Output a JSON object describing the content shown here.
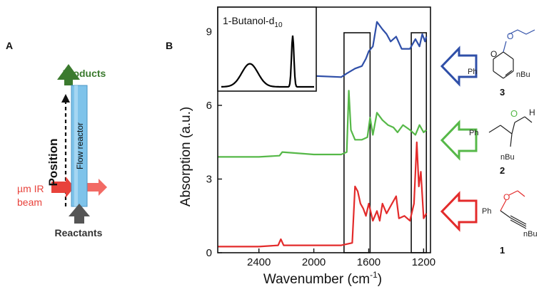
{
  "panel_a": {
    "letter": "A",
    "products": "Products",
    "position": "Position",
    "flow_reactor": "Flow reactor",
    "ir_beam_line1": "µm IR",
    "ir_beam_line2": "beam",
    "reactants": "Reactants",
    "colors": {
      "products": "#3b7a2e",
      "reactor": "#7ec3ea",
      "beam": "#e8423b",
      "reactants": "#555555"
    }
  },
  "panel_b": {
    "letter": "B",
    "ylabel": "Absorption (a.u.)",
    "xlabel_main": "Wavenumber (cm",
    "xlabel_sup": "-1",
    "xlabel_end": ")",
    "inset_label_main": "1-Butanol-d",
    "inset_label_sub": "10"
  },
  "chart_data": {
    "type": "line",
    "xlabel": "Wavenumber (cm-1)",
    "ylabel": "Absorption (a.u.)",
    "xlim": [
      2700,
      1150
    ],
    "ylim": [
      0,
      10
    ],
    "x_ticks": [
      2400,
      2000,
      1600,
      1200
    ],
    "y_ticks": [
      0,
      3,
      6,
      9
    ],
    "grid": false,
    "highlight_windows": [
      [
        1780,
        1590
      ],
      [
        1290,
        1180
      ]
    ],
    "series": [
      {
        "name": "3",
        "color": "#2f4fa8",
        "x": [
          2700,
          2400,
          2250,
          2230,
          2210,
          2000,
          1800,
          1760,
          1700,
          1650,
          1620,
          1600,
          1570,
          1540,
          1500,
          1470,
          1440,
          1400,
          1360,
          1300,
          1260,
          1230,
          1210,
          1190,
          1180
        ],
        "y": [
          7.1,
          7.1,
          7.15,
          7.5,
          7.15,
          7.2,
          7.15,
          7.3,
          7.5,
          7.6,
          7.9,
          8.2,
          8.4,
          9.4,
          9.1,
          8.9,
          8.6,
          8.8,
          8.3,
          8.3,
          8.7,
          8.4,
          8.9,
          8.6,
          8.8
        ]
      },
      {
        "name": "2",
        "color": "#56b848",
        "x": [
          2700,
          2400,
          2250,
          2230,
          2000,
          1800,
          1760,
          1745,
          1730,
          1700,
          1650,
          1610,
          1590,
          1570,
          1540,
          1500,
          1460,
          1420,
          1390,
          1350,
          1300,
          1260,
          1230,
          1200,
          1180
        ],
        "y": [
          3.9,
          3.9,
          3.95,
          4.1,
          4.0,
          4.0,
          4.1,
          6.6,
          5.0,
          4.6,
          4.6,
          4.7,
          5.5,
          4.8,
          5.7,
          5.4,
          5.2,
          5.1,
          4.9,
          5.2,
          5.0,
          4.8,
          5.2,
          4.9,
          5.0
        ]
      },
      {
        "name": "1",
        "color": "#e32b2b",
        "x": [
          2700,
          2400,
          2260,
          2240,
          2220,
          2000,
          1800,
          1720,
          1700,
          1680,
          1660,
          1640,
          1620,
          1600,
          1570,
          1540,
          1520,
          1500,
          1470,
          1440,
          1400,
          1380,
          1340,
          1300,
          1270,
          1250,
          1235,
          1220,
          1200,
          1180
        ],
        "y": [
          0.25,
          0.25,
          0.3,
          0.55,
          0.3,
          0.3,
          0.3,
          0.4,
          2.7,
          2.5,
          2.0,
          1.8,
          1.5,
          2.0,
          1.3,
          1.7,
          1.3,
          2.0,
          1.6,
          1.9,
          2.3,
          1.4,
          1.5,
          1.3,
          2.0,
          4.5,
          2.7,
          3.3,
          1.4,
          1.6
        ]
      }
    ],
    "inset": {
      "label": "1-Butanol-d10",
      "color": "#000000",
      "peaks": [
        {
          "x": 2500,
          "height": 0.45,
          "width": 80
        },
        {
          "x": 2200,
          "height": 1.0,
          "width": 12
        }
      ]
    }
  },
  "compounds": [
    {
      "number": "3",
      "substituent": "nBu",
      "aryl": "Ph",
      "color": "#2f4fa8"
    },
    {
      "number": "2",
      "substituent": "nBu",
      "aryl": "Ph",
      "hetero": "O",
      "hetero2": "H",
      "color": "#56b848"
    },
    {
      "number": "1",
      "substituent": "nBu",
      "aryl": "Ph",
      "color": "#e32b2b"
    }
  ]
}
